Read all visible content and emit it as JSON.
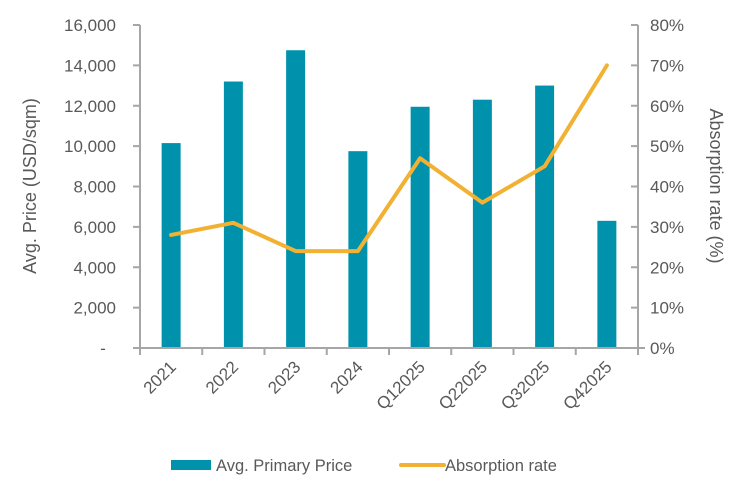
{
  "chart_data": {
    "type": "bar+line",
    "title": "",
    "categories": [
      "2021",
      "2022",
      "2023",
      "2024",
      "Q12025",
      "Q22025",
      "Q32025",
      "Q42025"
    ],
    "series": [
      {
        "name": "Avg. Primary Price",
        "type": "bar",
        "axis": "left",
        "color": "#0092AC",
        "values": [
          10150,
          13200,
          14750,
          9750,
          11950,
          12300,
          13000,
          6300
        ]
      },
      {
        "name": "Absorption rate",
        "type": "line",
        "axis": "right",
        "color": "#F2B132",
        "values": [
          28,
          31,
          24,
          24,
          47,
          36,
          45,
          70
        ]
      }
    ],
    "left_axis": {
      "label": "Avg. Price (USD/sqm)",
      "range": [
        0,
        16000
      ],
      "ticks": [
        0,
        2000,
        4000,
        6000,
        8000,
        10000,
        12000,
        14000,
        16000
      ],
      "tick_labels": [
        "-",
        "2,000",
        "4,000",
        "6,000",
        "8,000",
        "10,000",
        "12,000",
        "14,000",
        "16,000"
      ]
    },
    "right_axis": {
      "label": "Absorption rate (%)",
      "range": [
        0,
        80
      ],
      "ticks": [
        0,
        10,
        20,
        30,
        40,
        50,
        60,
        70,
        80
      ],
      "tick_labels": [
        "0%",
        "10%",
        "20%",
        "30%",
        "40%",
        "50%",
        "60%",
        "70%",
        "80%"
      ]
    },
    "xlabel": "",
    "grid": false,
    "legend": {
      "position": "bottom",
      "entries": [
        "Avg. Primary Price",
        "Absorption rate"
      ]
    },
    "colors": {
      "axis": "#A6A6A6",
      "text": "#595959"
    }
  }
}
